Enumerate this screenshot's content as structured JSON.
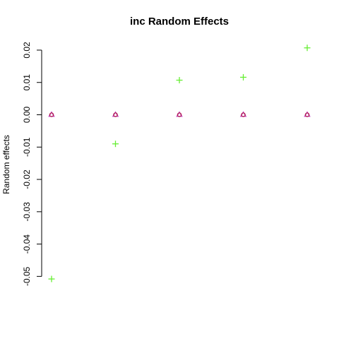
{
  "chart_data": {
    "type": "scatter",
    "title": "inc Random Effects",
    "xlabel": "",
    "ylabel": "Random effects",
    "x": [
      1,
      2,
      3,
      4,
      5
    ],
    "ylim": [
      -0.05,
      0.02
    ],
    "yticks": [
      -0.05,
      -0.04,
      -0.03,
      -0.02,
      -0.01,
      0.0,
      0.01,
      0.02
    ],
    "ytick_labels": [
      "-0.05",
      "-0.04",
      "-0.03",
      "-0.02",
      "-0.01",
      "0.00",
      "0.01",
      "0.02"
    ],
    "x_axis_drawn": false,
    "grid": false,
    "legend": "none",
    "series": [
      {
        "marker": "plus",
        "color": "#66ee33",
        "values": [
          -0.0508,
          -0.009,
          0.0107,
          0.0116,
          0.0207
        ]
      },
      {
        "marker": "triangle",
        "color": "#c03cc0",
        "values": [
          0.0,
          0.0,
          0.0,
          0.0,
          0.0
        ]
      },
      {
        "marker": "circle",
        "color": "#b22250",
        "values": [
          0.0,
          0.0,
          0.0,
          0.0,
          0.0
        ]
      }
    ]
  }
}
